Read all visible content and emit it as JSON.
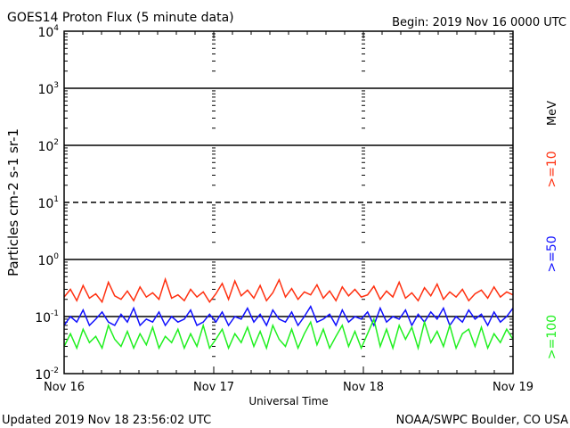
{
  "chart_data": {
    "type": "line",
    "title": "GOES14 Proton Flux (5 minute data)",
    "subtitle": "Begin: 2019 Nov 16 0000 UTC",
    "xlabel": "Universal Time",
    "ylabel": "Particles cm-2 s-1 sr-1",
    "x_ticks": [
      "Nov 16",
      "Nov 17",
      "Nov 18",
      "Nov 19"
    ],
    "x_range_hours": [
      0,
      72
    ],
    "y_scale": "log",
    "ylim": [
      0.01,
      10000
    ],
    "y_ticks": [
      {
        "base": "10",
        "exp": "4"
      },
      {
        "base": "10",
        "exp": "3"
      },
      {
        "base": "10",
        "exp": "2"
      },
      {
        "base": "10",
        "exp": "1"
      },
      {
        "base": "10",
        "exp": "0"
      },
      {
        "base": "10",
        "exp": "-1"
      },
      {
        "base": "10",
        "exp": "-2"
      }
    ],
    "reference_lines": [
      {
        "value": 1000,
        "style": "solid"
      },
      {
        "value": 100,
        "style": "solid"
      },
      {
        "value": 10,
        "style": "dashed"
      },
      {
        "value": 1,
        "style": "solid"
      },
      {
        "value": 0.1,
        "style": "solid"
      }
    ],
    "unit_label": "MeV",
    "series": [
      {
        "name": ">=10",
        "color": "#ff3010",
        "values": [
          0.22,
          0.3,
          0.19,
          0.35,
          0.21,
          0.25,
          0.18,
          0.4,
          0.23,
          0.2,
          0.28,
          0.19,
          0.33,
          0.22,
          0.26,
          0.2,
          0.45,
          0.21,
          0.24,
          0.19,
          0.3,
          0.22,
          0.27,
          0.18,
          0.25,
          0.38,
          0.2,
          0.42,
          0.23,
          0.29,
          0.21,
          0.35,
          0.19,
          0.26,
          0.44,
          0.22,
          0.31,
          0.2,
          0.27,
          0.24,
          0.36,
          0.21,
          0.28,
          0.19,
          0.33,
          0.23,
          0.3,
          0.22,
          0.24,
          0.34,
          0.2,
          0.28,
          0.22,
          0.4,
          0.21,
          0.26,
          0.19,
          0.32,
          0.23,
          0.37,
          0.2,
          0.27,
          0.22,
          0.3,
          0.19,
          0.25,
          0.29,
          0.21,
          0.33,
          0.22,
          0.27,
          0.24
        ]
      },
      {
        "name": ">=50",
        "color": "#1010ff",
        "values": [
          0.07,
          0.1,
          0.08,
          0.13,
          0.07,
          0.09,
          0.12,
          0.08,
          0.07,
          0.11,
          0.08,
          0.14,
          0.07,
          0.09,
          0.08,
          0.12,
          0.07,
          0.1,
          0.08,
          0.09,
          0.13,
          0.07,
          0.08,
          0.11,
          0.08,
          0.12,
          0.07,
          0.1,
          0.09,
          0.14,
          0.08,
          0.11,
          0.07,
          0.13,
          0.09,
          0.08,
          0.12,
          0.07,
          0.1,
          0.15,
          0.08,
          0.09,
          0.11,
          0.07,
          0.13,
          0.08,
          0.1,
          0.09,
          0.12,
          0.07,
          0.14,
          0.08,
          0.1,
          0.09,
          0.13,
          0.07,
          0.11,
          0.08,
          0.12,
          0.09,
          0.14,
          0.07,
          0.1,
          0.08,
          0.13,
          0.09,
          0.11,
          0.07,
          0.12,
          0.08,
          0.1,
          0.14
        ]
      },
      {
        "name": ">=100",
        "color": "#20f020",
        "values": [
          0.03,
          0.05,
          0.028,
          0.06,
          0.035,
          0.045,
          0.028,
          0.07,
          0.04,
          0.03,
          0.055,
          0.028,
          0.05,
          0.032,
          0.065,
          0.028,
          0.045,
          0.035,
          0.06,
          0.028,
          0.05,
          0.03,
          0.07,
          0.028,
          0.04,
          0.06,
          0.028,
          0.05,
          0.035,
          0.065,
          0.03,
          0.055,
          0.028,
          0.07,
          0.04,
          0.03,
          0.06,
          0.028,
          0.05,
          0.08,
          0.032,
          0.06,
          0.028,
          0.045,
          0.07,
          0.03,
          0.055,
          0.028,
          0.05,
          0.09,
          0.03,
          0.06,
          0.028,
          0.07,
          0.04,
          0.065,
          0.028,
          0.08,
          0.035,
          0.055,
          0.03,
          0.07,
          0.028,
          0.05,
          0.06,
          0.03,
          0.065,
          0.028,
          0.05,
          0.035,
          0.06,
          0.04
        ]
      }
    ]
  },
  "footer": {
    "updated": "Updated 2019 Nov 18 23:56:02 UTC",
    "credit": "NOAA/SWPC Boulder, CO USA"
  }
}
